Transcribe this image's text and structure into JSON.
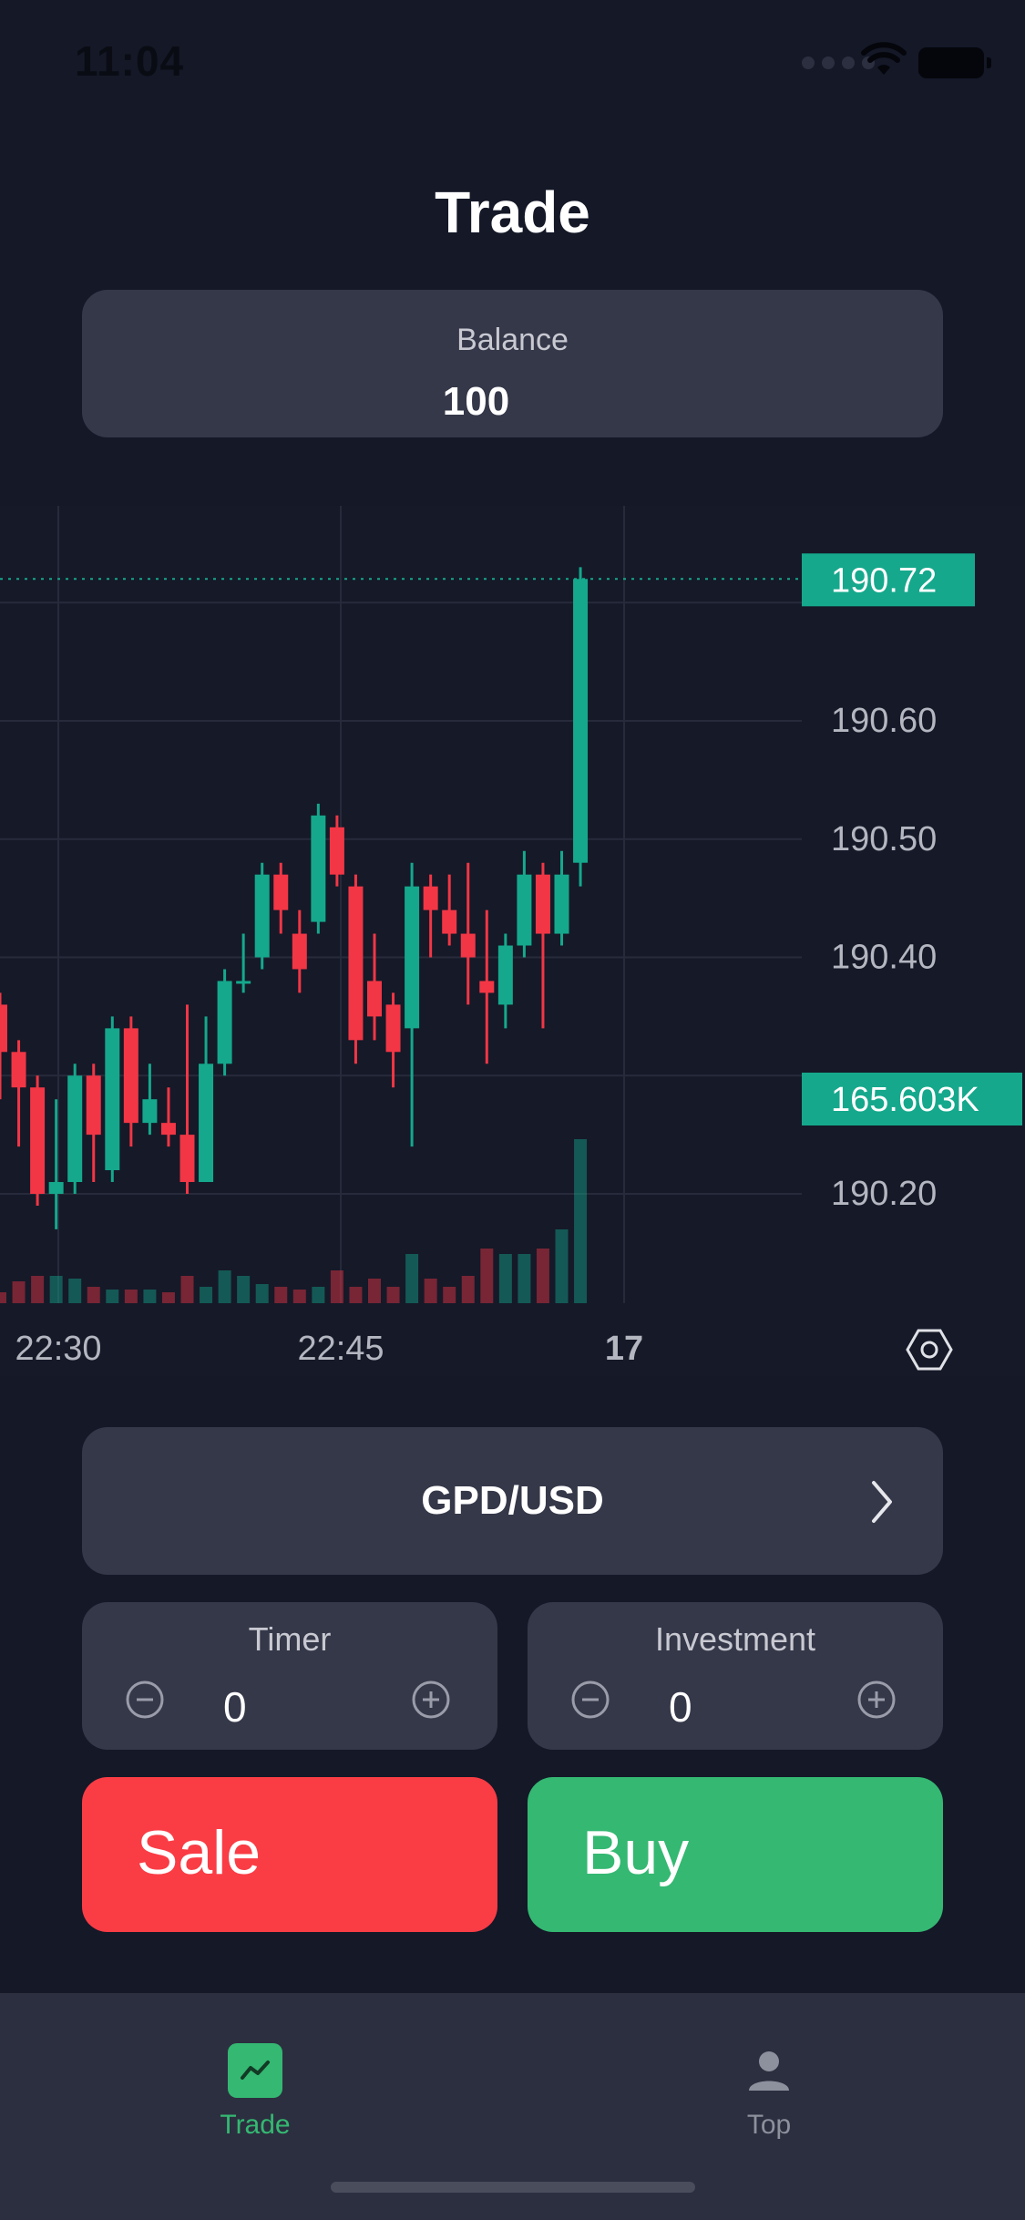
{
  "status_bar": {
    "time": "11:04"
  },
  "header": {
    "title": "Trade"
  },
  "balance": {
    "label": "Balance",
    "value": "100"
  },
  "chart_data": {
    "type": "candlestick",
    "x_ticks": [
      "22:30",
      "22:45",
      "17"
    ],
    "y_ticks": [
      "190.60",
      "190.50",
      "190.40",
      "190.20"
    ],
    "last_price_label": "190.72",
    "volume_label": "165.603K",
    "candles": [
      {
        "o": 190.36,
        "c": 190.32,
        "h": 190.37,
        "l": 190.28
      },
      {
        "o": 190.32,
        "c": 190.29,
        "h": 190.33,
        "l": 190.24
      },
      {
        "o": 190.29,
        "c": 190.2,
        "h": 190.3,
        "l": 190.19
      },
      {
        "o": 190.2,
        "c": 190.21,
        "h": 190.28,
        "l": 190.17
      },
      {
        "o": 190.21,
        "c": 190.3,
        "h": 190.31,
        "l": 190.2
      },
      {
        "o": 190.3,
        "c": 190.25,
        "h": 190.31,
        "l": 190.21
      },
      {
        "o": 190.22,
        "c": 190.34,
        "h": 190.35,
        "l": 190.21
      },
      {
        "o": 190.34,
        "c": 190.26,
        "h": 190.35,
        "l": 190.24
      },
      {
        "o": 190.26,
        "c": 190.28,
        "h": 190.31,
        "l": 190.25
      },
      {
        "o": 190.26,
        "c": 190.25,
        "h": 190.29,
        "l": 190.24
      },
      {
        "o": 190.25,
        "c": 190.21,
        "h": 190.36,
        "l": 190.2
      },
      {
        "o": 190.21,
        "c": 190.31,
        "h": 190.35,
        "l": 190.21
      },
      {
        "o": 190.31,
        "c": 190.38,
        "h": 190.39,
        "l": 190.3
      },
      {
        "o": 190.38,
        "c": 190.38,
        "h": 190.42,
        "l": 190.37
      },
      {
        "o": 190.4,
        "c": 190.47,
        "h": 190.48,
        "l": 190.39
      },
      {
        "o": 190.47,
        "c": 190.44,
        "h": 190.48,
        "l": 190.42
      },
      {
        "o": 190.42,
        "c": 190.39,
        "h": 190.44,
        "l": 190.37
      },
      {
        "o": 190.43,
        "c": 190.52,
        "h": 190.53,
        "l": 190.42
      },
      {
        "o": 190.51,
        "c": 190.47,
        "h": 190.52,
        "l": 190.46
      },
      {
        "o": 190.46,
        "c": 190.33,
        "h": 190.47,
        "l": 190.31
      },
      {
        "o": 190.38,
        "c": 190.35,
        "h": 190.42,
        "l": 190.33
      },
      {
        "o": 190.36,
        "c": 190.32,
        "h": 190.37,
        "l": 190.29
      },
      {
        "o": 190.34,
        "c": 190.46,
        "h": 190.48,
        "l": 190.24
      },
      {
        "o": 190.46,
        "c": 190.44,
        "h": 190.47,
        "l": 190.4
      },
      {
        "o": 190.44,
        "c": 190.42,
        "h": 190.47,
        "l": 190.41
      },
      {
        "o": 190.42,
        "c": 190.4,
        "h": 190.48,
        "l": 190.36
      },
      {
        "o": 190.38,
        "c": 190.37,
        "h": 190.44,
        "l": 190.31
      },
      {
        "o": 190.36,
        "c": 190.41,
        "h": 190.42,
        "l": 190.34
      },
      {
        "o": 190.41,
        "c": 190.47,
        "h": 190.49,
        "l": 190.4
      },
      {
        "o": 190.47,
        "c": 190.42,
        "h": 190.48,
        "l": 190.34
      },
      {
        "o": 190.42,
        "c": 190.47,
        "h": 190.49,
        "l": 190.41
      },
      {
        "o": 190.48,
        "c": 190.72,
        "h": 190.73,
        "l": 190.46
      }
    ],
    "volumes": [
      4,
      8,
      10,
      10,
      9,
      6,
      5,
      5,
      5,
      4,
      10,
      6,
      12,
      10,
      7,
      6,
      5,
      6,
      12,
      6,
      9,
      6,
      18,
      9,
      6,
      10,
      20,
      18,
      18,
      20,
      27,
      60
    ]
  },
  "pair_selector": {
    "label": "GPD/USD"
  },
  "timer": {
    "label": "Timer",
    "value": "0"
  },
  "investment": {
    "label": "Investment",
    "value": "0"
  },
  "actions": {
    "sale_label": "Sale",
    "buy_label": "Buy"
  },
  "tabs": {
    "trade_label": "Trade",
    "top_label": "Top"
  },
  "colors": {
    "up": "#15a88c",
    "down": "#f23645",
    "accent_green": "#34b872",
    "sale_red": "#fa3c45"
  }
}
